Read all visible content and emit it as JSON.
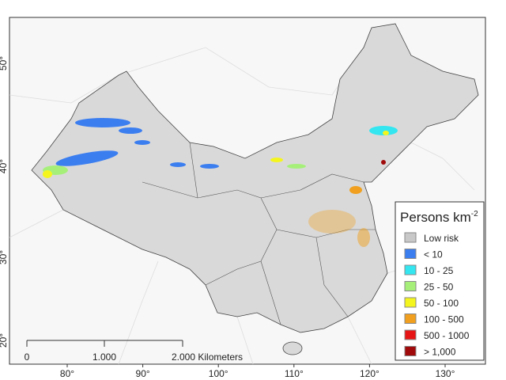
{
  "legend": {
    "title": "Persons km",
    "title_sup": "-2",
    "items": [
      {
        "label": "Low risk",
        "color": "#c8c8c8"
      },
      {
        "label": "< 10",
        "color": "#3b7ef0"
      },
      {
        "label": "10 - 25",
        "color": "#33e6f0"
      },
      {
        "label": "25 - 50",
        "color": "#a6f07a"
      },
      {
        "label": "50 - 100",
        "color": "#f5f51e"
      },
      {
        "label": "100 - 500",
        "color": "#f0a01e"
      },
      {
        "label": "500 - 1000",
        "color": "#e61414"
      },
      {
        "label": "> 1,000",
        "color": "#a00a0a"
      }
    ]
  },
  "scale_bar": {
    "labels": [
      "0",
      "1.000",
      "2.000 Kilometers"
    ]
  },
  "longitudes": [
    "80°",
    "90°",
    "100°",
    "110°",
    "120°",
    "130°"
  ],
  "latitudes": [
    "50°",
    "40°",
    "30°",
    "20°"
  ]
}
